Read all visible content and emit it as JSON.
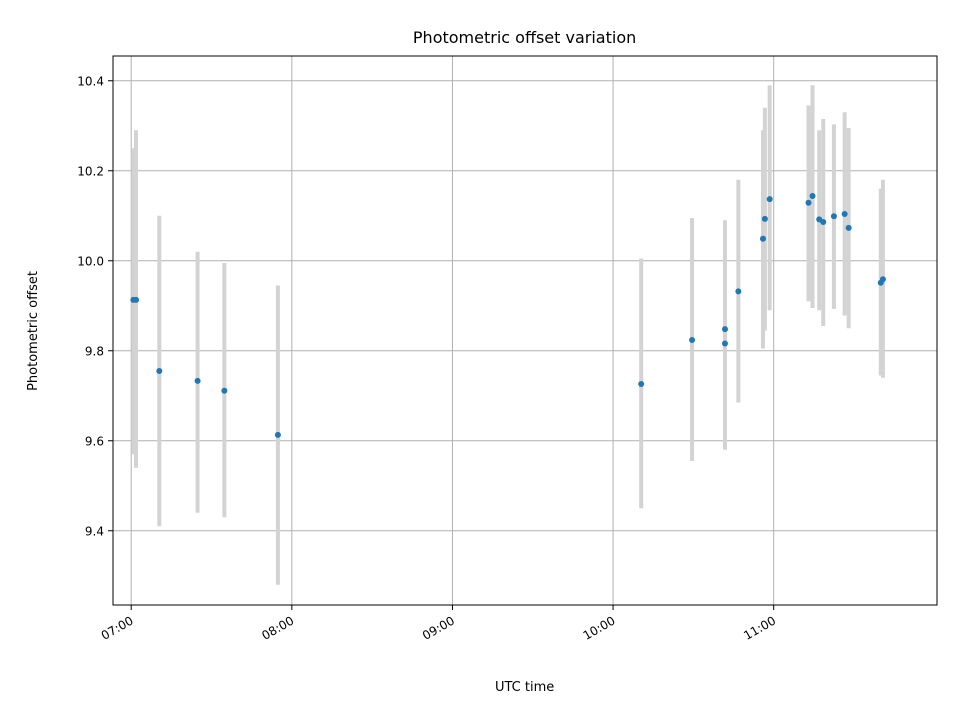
{
  "chart_data": {
    "type": "scatter",
    "title": "Photometric offset variation",
    "xlabel": "UTC time",
    "ylabel": "Photometric offset",
    "x_unit": "minutes of day (UTC)",
    "xlim": [
      413.2,
      721.0
    ],
    "ylim": [
      9.235,
      10.455
    ],
    "x_ticks": [
      {
        "value": 420,
        "label": "07:00"
      },
      {
        "value": 480,
        "label": "08:00"
      },
      {
        "value": 540,
        "label": "09:00"
      },
      {
        "value": 600,
        "label": "10:00"
      },
      {
        "value": 660,
        "label": "11:00"
      }
    ],
    "y_ticks": [
      {
        "value": 9.4,
        "label": "9.4"
      },
      {
        "value": 9.6,
        "label": "9.6"
      },
      {
        "value": 9.8,
        "label": "9.8"
      },
      {
        "value": 10.0,
        "label": "10.0"
      },
      {
        "value": 10.2,
        "label": "10.2"
      },
      {
        "value": 10.4,
        "label": "10.4"
      }
    ],
    "grid": true,
    "colors": {
      "points": "#1f77b4",
      "errorbars": "#d3d3d3"
    },
    "points": [
      {
        "x": 420.8,
        "y": 9.913,
        "err_low": 9.57,
        "err_high": 10.25
      },
      {
        "x": 421.8,
        "y": 9.913,
        "err_low": 9.54,
        "err_high": 10.29
      },
      {
        "x": 430.5,
        "y": 9.755,
        "err_low": 9.41,
        "err_high": 10.1
      },
      {
        "x": 444.8,
        "y": 9.733,
        "err_low": 9.44,
        "err_high": 10.02
      },
      {
        "x": 454.8,
        "y": 9.711,
        "err_low": 9.43,
        "err_high": 9.995
      },
      {
        "x": 474.8,
        "y": 9.613,
        "err_low": 9.28,
        "err_high": 9.945
      },
      {
        "x": 610.5,
        "y": 9.726,
        "err_low": 9.45,
        "err_high": 10.005
      },
      {
        "x": 629.5,
        "y": 9.824,
        "err_low": 9.555,
        "err_high": 10.095
      },
      {
        "x": 641.8,
        "y": 9.848,
        "err_low": 9.61,
        "err_high": 10.09
      },
      {
        "x": 641.8,
        "y": 9.816,
        "err_low": 9.58,
        "err_high": 10.05
      },
      {
        "x": 646.8,
        "y": 9.932,
        "err_low": 9.685,
        "err_high": 10.18
      },
      {
        "x": 656.0,
        "y": 10.049,
        "err_low": 9.805,
        "err_high": 10.29
      },
      {
        "x": 656.7,
        "y": 10.093,
        "err_low": 9.845,
        "err_high": 10.34
      },
      {
        "x": 658.5,
        "y": 10.137,
        "err_low": 9.89,
        "err_high": 10.39
      },
      {
        "x": 673.0,
        "y": 10.129,
        "err_low": 9.91,
        "err_high": 10.345
      },
      {
        "x": 674.5,
        "y": 10.144,
        "err_low": 9.895,
        "err_high": 10.39
      },
      {
        "x": 677.0,
        "y": 10.092,
        "err_low": 9.89,
        "err_high": 10.29
      },
      {
        "x": 678.5,
        "y": 10.086,
        "err_low": 9.855,
        "err_high": 10.315
      },
      {
        "x": 682.5,
        "y": 10.099,
        "err_low": 9.893,
        "err_high": 10.303
      },
      {
        "x": 686.5,
        "y": 10.104,
        "err_low": 9.878,
        "err_high": 10.33
      },
      {
        "x": 688.0,
        "y": 10.073,
        "err_low": 9.85,
        "err_high": 10.295
      },
      {
        "x": 700.0,
        "y": 9.951,
        "err_low": 9.745,
        "err_high": 10.16
      },
      {
        "x": 700.8,
        "y": 9.959,
        "err_low": 9.74,
        "err_high": 10.18
      }
    ]
  }
}
